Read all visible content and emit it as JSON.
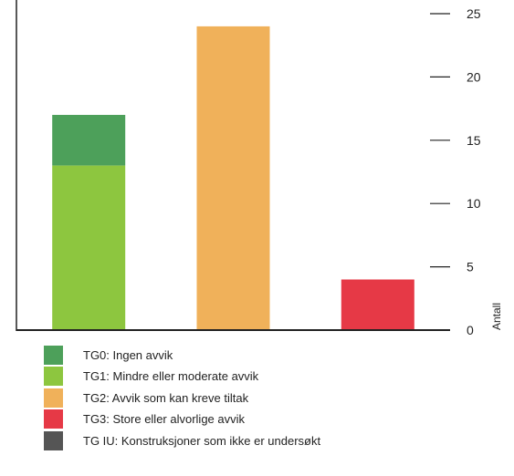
{
  "chart_data": {
    "type": "bar",
    "stacked": true,
    "categories": [
      "",
      "",
      ""
    ],
    "series": [
      {
        "name": "TG0: Ingen avvik",
        "color": "#4da05a",
        "values": [
          4,
          0,
          0
        ]
      },
      {
        "name": "TG1: Mindre eller moderate avvik",
        "color": "#8dc63f",
        "values": [
          13,
          0,
          0
        ]
      },
      {
        "name": "TG2: Avvik som kan kreve tiltak",
        "color": "#f0b15a",
        "values": [
          0,
          24,
          0
        ]
      },
      {
        "name": "TG3: Store eller alvorlige avvik",
        "color": "#e63946",
        "values": [
          0,
          0,
          4
        ]
      },
      {
        "name": "TG IU: Konstruksjoner som ikke er undersøkt",
        "color": "#555555",
        "values": [
          0,
          0,
          0
        ]
      }
    ],
    "stack_order": [
      "TG1: Mindre eller moderate avvik",
      "TG2: Avvik som kan kreve tiltak",
      "TG3: Store eller alvorlige avvik",
      "TG IU: Konstruksjoner som ikke er undersøkt",
      "TG0: Ingen avvik"
    ],
    "ylabel": "Antall",
    "ylim": [
      0,
      25
    ],
    "yticks": [
      0,
      5,
      10,
      15,
      20,
      25
    ],
    "y_axis_position": "right",
    "grid": false,
    "legend_position": "bottom-left"
  }
}
